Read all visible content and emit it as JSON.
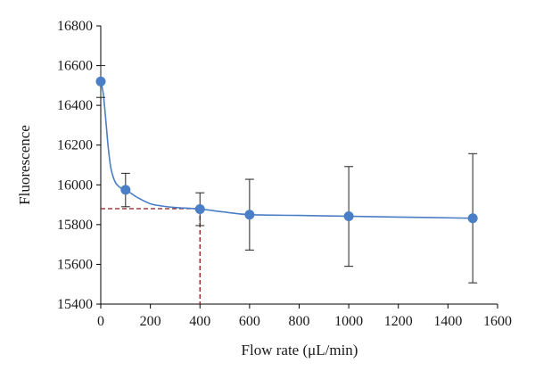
{
  "chart_data": {
    "type": "scatter",
    "xlabel": "Flow rate (μL/min)",
    "ylabel": "Fluorescence",
    "xlim": [
      0,
      1600
    ],
    "ylim": [
      15400,
      16800
    ],
    "x_ticks": [
      0,
      200,
      400,
      600,
      800,
      1000,
      1200,
      1400,
      1600
    ],
    "y_ticks": [
      15400,
      15600,
      15800,
      16000,
      16200,
      16400,
      16600,
      16800
    ],
    "grid": false,
    "legend": "none",
    "series": [
      {
        "x": [
          0,
          100,
          400,
          600,
          1000,
          1500
        ],
        "y": [
          16520,
          15975,
          15878,
          15850,
          15842,
          15832
        ],
        "error_low": [
          16440,
          15890,
          15795,
          15672,
          15590,
          15507
        ],
        "error_high": [
          16600,
          16058,
          15960,
          16028,
          16092,
          16157
        ],
        "color": "#4a7ec6"
      }
    ],
    "fit_curve": {
      "x": [
        0,
        10,
        20,
        30,
        40,
        50,
        60,
        70,
        80,
        100,
        125,
        150,
        200,
        250,
        300,
        400,
        500,
        600,
        800,
        1000,
        1200,
        1500
      ],
      "y": [
        16520,
        16460,
        16330,
        16190,
        16090,
        16040,
        16010,
        15995,
        15985,
        15975,
        15955,
        15935,
        15905,
        15893,
        15886,
        15878,
        15863,
        15850,
        15846,
        15842,
        15838,
        15832
      ],
      "color": "#4a7ec6"
    },
    "reference_lines": {
      "x": 400,
      "y": 15880,
      "color": "#8b1a1a"
    }
  }
}
